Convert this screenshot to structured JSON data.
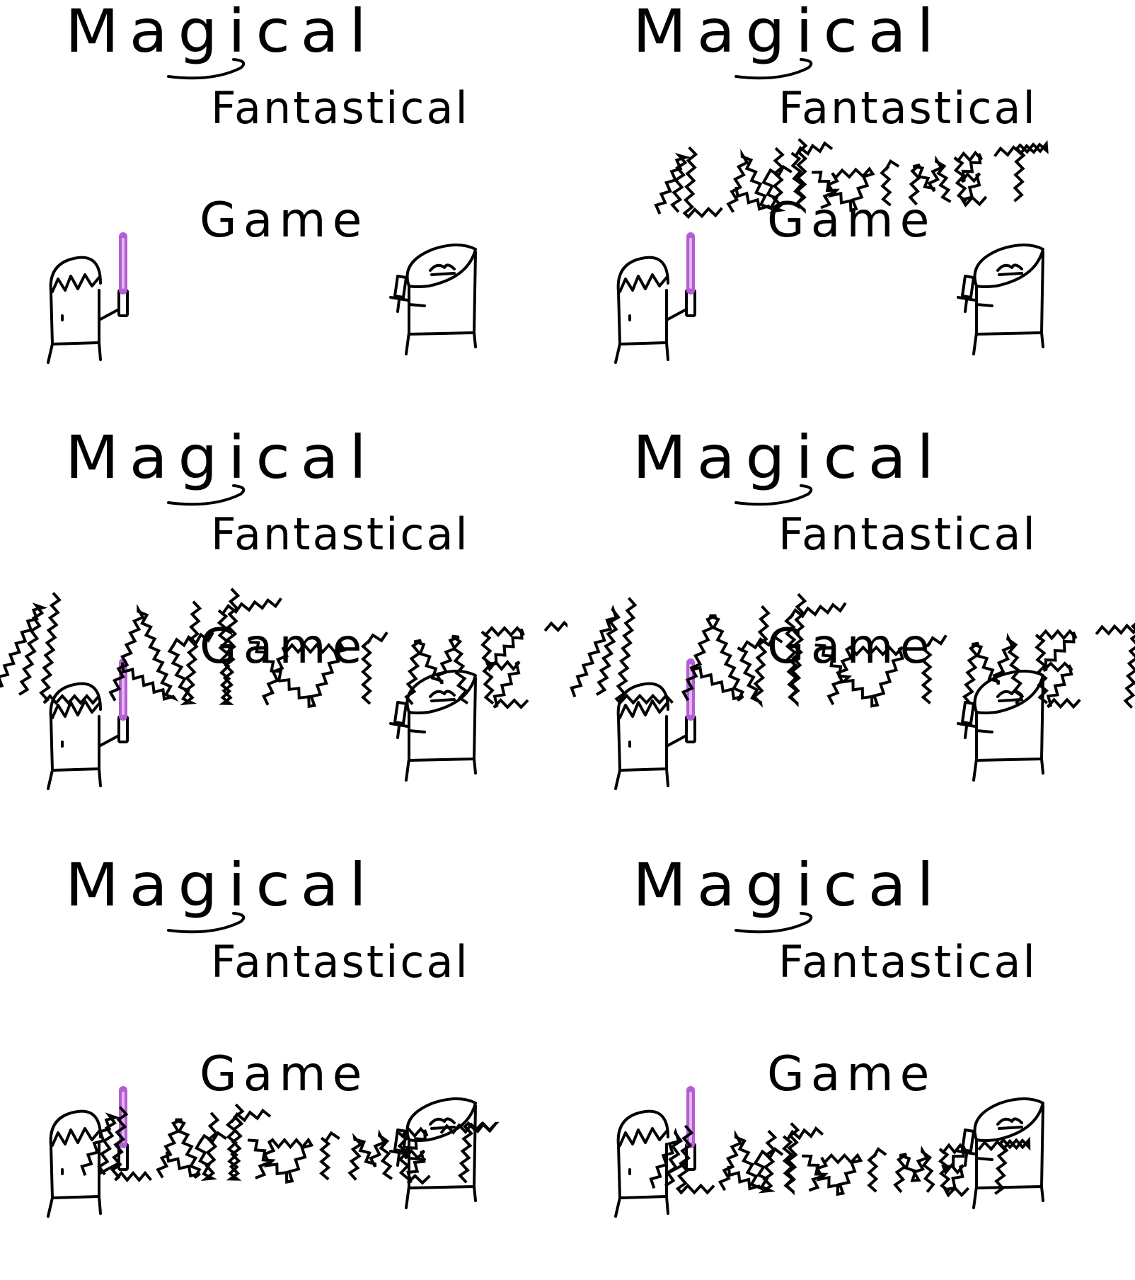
{
  "screen": {
    "title_words": [
      "Magical",
      "Fantastical",
      "Game"
    ],
    "animated_word": "PLATFORMER",
    "colors": {
      "background": "#ffffff",
      "ink": "#000000",
      "lightsaber": "#b45ed6",
      "lightsaber_core": "#e3b8f2"
    },
    "characters": [
      {
        "role": "hero",
        "holds": "purple-lightsaber"
      },
      {
        "role": "enemy",
        "holds": "dagger"
      }
    ]
  },
  "frames": [
    {
      "index": 1,
      "platformer_state": "hidden"
    },
    {
      "index": 2,
      "platformer_state": "small"
    },
    {
      "index": 3,
      "platformer_state": "huge"
    },
    {
      "index": 4,
      "platformer_state": "large"
    },
    {
      "index": 5,
      "platformer_state": "medium"
    },
    {
      "index": 6,
      "platformer_state": "settled"
    }
  ]
}
